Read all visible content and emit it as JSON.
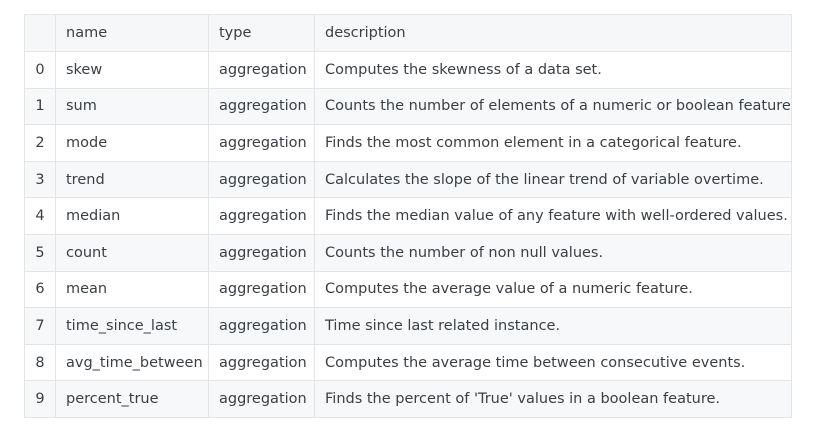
{
  "table": {
    "columns": [
      "",
      "name",
      "type",
      "description"
    ],
    "rows": [
      {
        "index": "0",
        "name": "skew",
        "type": "aggregation",
        "description": "Computes the skewness of a data set."
      },
      {
        "index": "1",
        "name": "sum",
        "type": "aggregation",
        "description": "Counts the number of elements of a numeric or boolean feature."
      },
      {
        "index": "2",
        "name": "mode",
        "type": "aggregation",
        "description": "Finds the most common element in a categorical feature."
      },
      {
        "index": "3",
        "name": "trend",
        "type": "aggregation",
        "description": "Calculates the slope of the linear trend of variable overtime."
      },
      {
        "index": "4",
        "name": "median",
        "type": "aggregation",
        "description": "Finds the median value of any feature with well-ordered values."
      },
      {
        "index": "5",
        "name": "count",
        "type": "aggregation",
        "description": "Counts the number of non null values."
      },
      {
        "index": "6",
        "name": "mean",
        "type": "aggregation",
        "description": "Computes the average value of a numeric feature."
      },
      {
        "index": "7",
        "name": "time_since_last",
        "type": "aggregation",
        "description": "Time since last related instance."
      },
      {
        "index": "8",
        "name": "avg_time_between",
        "type": "aggregation",
        "description": "Computes the average time between consecutive events."
      },
      {
        "index": "9",
        "name": "percent_true",
        "type": "aggregation",
        "description": "Finds the percent of 'True' values in a boolean feature."
      }
    ]
  }
}
